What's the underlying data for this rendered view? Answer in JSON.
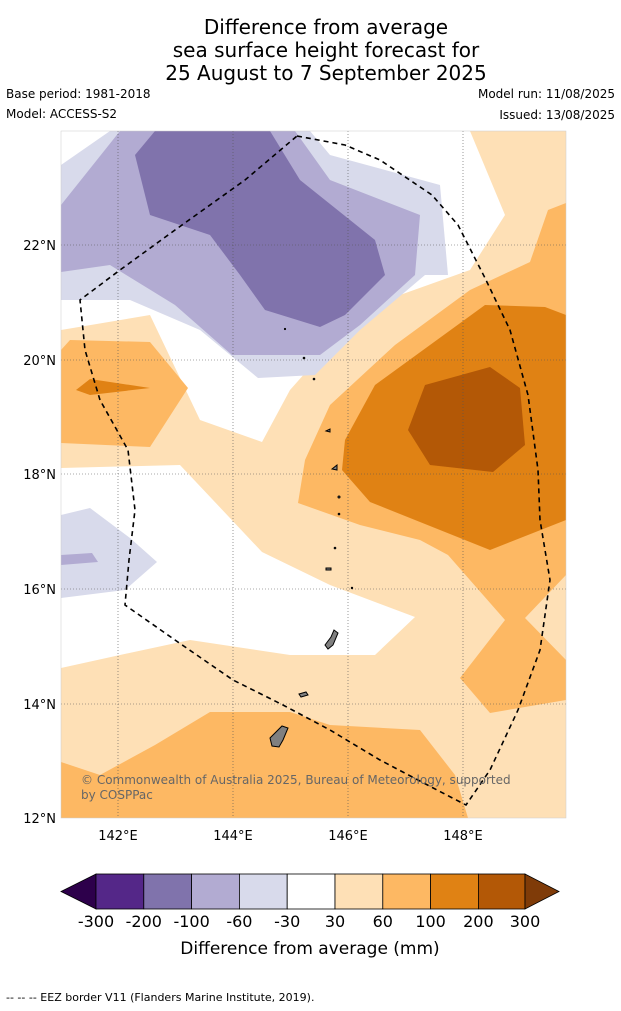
{
  "title": {
    "line1": "Difference from average",
    "line2": "sea surface height forecast for",
    "line3": "25 August to 7 September 2025"
  },
  "meta": {
    "base_period": "Base period: 1981-2018",
    "model": "Model: ACCESS-S2",
    "model_run": "Model run: 11/08/2025",
    "issued": "Issued: 13/08/2025"
  },
  "map": {
    "lat_labels": [
      "22°N",
      "20°N",
      "18°N",
      "16°N",
      "14°N",
      "12°N"
    ],
    "lon_labels": [
      "142°E",
      "144°E",
      "146°E",
      "148°E"
    ],
    "copyright_line1": "© Commonwealth of Australia 2025, Bureau of Meteorology, supported",
    "copyright_line2": "by COSPPac"
  },
  "colorbar": {
    "labels": [
      "-300",
      "-200",
      "-100",
      "-60",
      "-30",
      "30",
      "60",
      "100",
      "200",
      "300"
    ],
    "title": "Difference from average (mm)",
    "colors": {
      "lt_-300": "#2d004b",
      "-300_-200": "#542788",
      "-200_-100": "#8073ac",
      "-100_-60": "#b2abd2",
      "-60_-30": "#d8daeb",
      "-30_30": "#ffffff",
      "30_60": "#fee0b6",
      "60_100": "#fdb863",
      "100_200": "#e08214",
      "200_300": "#b35806",
      "gt_300": "#7f3b08"
    }
  },
  "footer": {
    "legend": "-- -- -- EEZ border V11 (Flanders Marine Institute, 2019)."
  }
}
